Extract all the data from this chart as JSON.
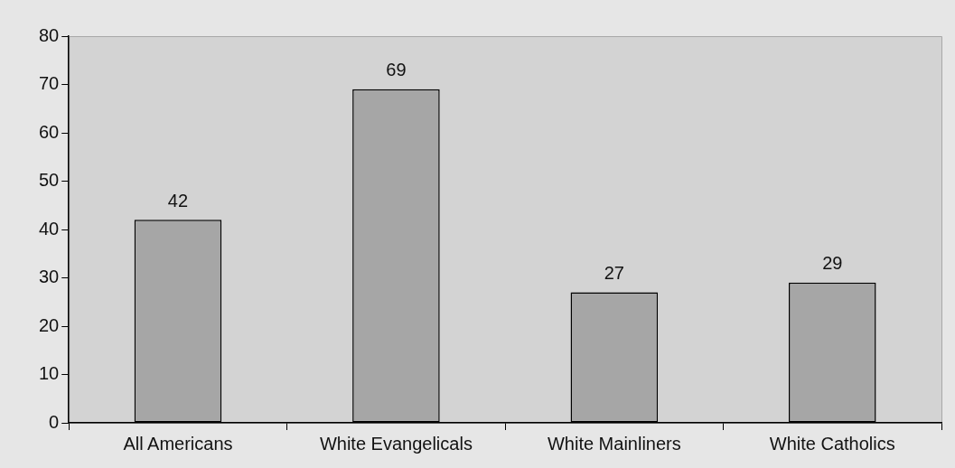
{
  "chart_data": {
    "type": "bar",
    "categories": [
      "All Americans",
      "White Evangelicals",
      "White Mainliners",
      "White Catholics"
    ],
    "values": [
      42,
      69,
      27,
      29
    ],
    "color": "#a6a6a6",
    "ylim": [
      0,
      80
    ],
    "yticks": [
      0,
      10,
      20,
      30,
      40,
      50,
      60,
      70,
      80
    ],
    "data_labels": true
  }
}
